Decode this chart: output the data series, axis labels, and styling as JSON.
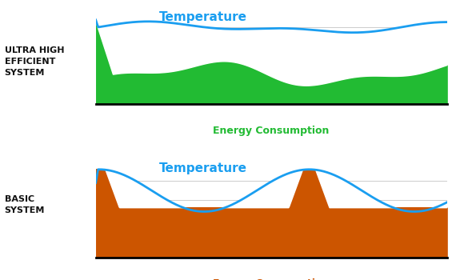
{
  "fig_width": 5.7,
  "fig_height": 3.5,
  "dpi": 100,
  "bg_color": "#ffffff",
  "panel_bg": "#ffffff",
  "grid_color": "#cccccc",
  "top_title": "ULTRA HIGH\nEFFICIENT\nSYSTEM",
  "bottom_title": "BASIC\nSYSTEM",
  "temp_label": "Temperature",
  "energy_label": "Energy Consumption",
  "temp_color": "#1a9ef0",
  "top_fill_color": "#22bb33",
  "bottom_fill_color": "#cc5500",
  "title_color": "#111111",
  "energy_color_top": "#22bb33",
  "energy_color_bottom": "#cc5500",
  "temp_fontsize": 11,
  "energy_fontsize": 9,
  "title_fontsize": 8
}
